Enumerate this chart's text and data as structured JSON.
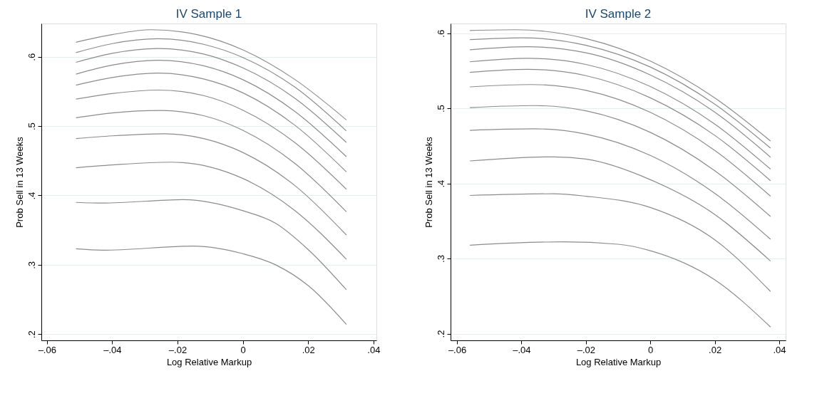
{
  "chart_data": [
    {
      "type": "line",
      "title": "IV Sample 1",
      "xlabel": "Log Relative Markup",
      "ylabel": "Prob Sell in 13 Weeks",
      "grid": "y",
      "legend": false,
      "marker": "none",
      "line_style": "solid",
      "xlim": [
        -0.0617,
        0.0409
      ],
      "ylim": [
        0.191,
        0.648
      ],
      "xticks": [
        {
          "value": -0.06,
          "label": "–.06"
        },
        {
          "value": -0.04,
          "label": "–.04"
        },
        {
          "value": -0.02,
          "label": "–.02"
        },
        {
          "value": 0,
          "label": "0"
        },
        {
          "value": 0.02,
          "label": ".02"
        },
        {
          "value": 0.04,
          "label": ".04"
        }
      ],
      "yticks": [
        {
          "value": 0.2,
          "label": ".2"
        },
        {
          "value": 0.3,
          "label": ".3"
        },
        {
          "value": 0.4,
          "label": ".4"
        },
        {
          "value": 0.5,
          "label": ".5"
        },
        {
          "value": 0.6,
          "label": ".6"
        }
      ],
      "series": [
        {
          "color": "#8c8c8c",
          "x": [
            -0.0511,
            -0.04,
            -0.028,
            -0.014,
            0,
            0.016,
            0.0317
          ],
          "values": [
            0.621,
            0.632,
            0.639,
            0.632,
            0.61,
            0.567,
            0.509
          ]
        },
        {
          "color": "#8c8c8c",
          "x": [
            -0.0511,
            -0.04,
            -0.026,
            -0.012,
            0,
            0.016,
            0.0317
          ],
          "values": [
            0.606,
            0.619,
            0.626,
            0.618,
            0.599,
            0.556,
            0.493
          ]
        },
        {
          "color": "#8c8c8c",
          "x": [
            -0.0511,
            -0.04,
            -0.026,
            -0.012,
            0,
            0.016,
            0.0317
          ],
          "values": [
            0.592,
            0.605,
            0.612,
            0.604,
            0.584,
            0.54,
            0.4765
          ]
        },
        {
          "color": "#8c8c8c",
          "x": [
            -0.0511,
            -0.04,
            -0.026,
            -0.012,
            0,
            0.016,
            0.0317
          ],
          "values": [
            0.575,
            0.588,
            0.595,
            0.587,
            0.567,
            0.521,
            0.456
          ]
        },
        {
          "color": "#8c8c8c",
          "x": [
            -0.0511,
            -0.04,
            -0.026,
            -0.012,
            0,
            0.016,
            0.0317
          ],
          "values": [
            0.559,
            0.57,
            0.5765,
            0.568,
            0.548,
            0.501,
            0.434
          ]
        },
        {
          "color": "#8c8c8c",
          "x": [
            -0.0511,
            -0.04,
            -0.026,
            -0.012,
            0,
            0.016,
            0.0317
          ],
          "values": [
            0.539,
            0.547,
            0.552,
            0.544,
            0.523,
            0.476,
            0.409
          ]
        },
        {
          "color": "#8c8c8c",
          "x": [
            -0.0511,
            -0.04,
            -0.025,
            -0.012,
            0,
            0.016,
            0.0317
          ],
          "values": [
            0.512,
            0.519,
            0.5225,
            0.515,
            0.494,
            0.446,
            0.3765
          ]
        },
        {
          "color": "#8c8c8c",
          "x": [
            -0.0511,
            -0.04,
            -0.024,
            -0.012,
            0,
            0.016,
            0.0317
          ],
          "values": [
            0.482,
            0.486,
            0.489,
            0.482,
            0.462,
            0.414,
            0.343
          ]
        },
        {
          "color": "#8c8c8c",
          "x": [
            -0.0511,
            -0.04,
            -0.022,
            -0.01,
            0,
            0.016,
            0.0317
          ],
          "values": [
            0.44,
            0.444,
            0.448,
            0.441,
            0.4245,
            0.378,
            0.308
          ]
        },
        {
          "color": "#8c8c8c",
          "x": [
            -0.0511,
            -0.043,
            -0.018,
            0,
            0.01,
            0.02,
            0.0317
          ],
          "values": [
            0.39,
            0.389,
            0.394,
            0.378,
            0.36,
            0.322,
            0.264
          ]
        },
        {
          "color": "#8c8c8c",
          "x": [
            -0.0511,
            -0.043,
            -0.015,
            0,
            0.01,
            0.02,
            0.0317
          ],
          "values": [
            0.323,
            0.321,
            0.327,
            0.316,
            0.3,
            0.27,
            0.214
          ]
        }
      ]
    },
    {
      "type": "line",
      "title": "IV Sample 2",
      "xlabel": "Log Relative Markup",
      "ylabel": "Prob Sell in 13 Weeks",
      "grid": "y",
      "legend": false,
      "marker": "none",
      "line_style": "solid",
      "xlim": [
        -0.062,
        0.042
      ],
      "ylim": [
        0.191,
        0.613
      ],
      "xticks": [
        {
          "value": -0.06,
          "label": "–.06"
        },
        {
          "value": -0.04,
          "label": "–.04"
        },
        {
          "value": -0.02,
          "label": "–.02"
        },
        {
          "value": 0,
          "label": "0"
        },
        {
          "value": 0.02,
          "label": ".02"
        },
        {
          "value": 0.04,
          "label": ".04"
        }
      ],
      "yticks": [
        {
          "value": 0.2,
          "label": ".2"
        },
        {
          "value": 0.3,
          "label": ".3"
        },
        {
          "value": 0.4,
          "label": ".4"
        },
        {
          "value": 0.5,
          "label": ".5"
        },
        {
          "value": 0.6,
          "label": ".6"
        }
      ],
      "series": [
        {
          "color": "#8c8c8c",
          "x": [
            -0.056,
            -0.042,
            -0.02,
            0,
            0.02,
            0.0373
          ],
          "values": [
            0.6037,
            0.6047,
            0.593,
            0.563,
            0.514,
            0.4566
          ]
        },
        {
          "color": "#8c8c8c",
          "x": [
            -0.056,
            -0.04,
            -0.02,
            0,
            0.02,
            0.0373
          ],
          "values": [
            0.5916,
            0.594,
            0.584,
            0.555,
            0.5055,
            0.447
          ]
        },
        {
          "color": "#8c8c8c",
          "x": [
            -0.056,
            -0.038,
            -0.02,
            0,
            0.02,
            0.0373
          ],
          "values": [
            0.578,
            0.582,
            0.574,
            0.5445,
            0.495,
            0.435
          ]
        },
        {
          "color": "#8c8c8c",
          "x": [
            -0.056,
            -0.038,
            -0.02,
            0,
            0.02,
            0.0373
          ],
          "values": [
            0.562,
            0.5667,
            0.5585,
            0.529,
            0.479,
            0.419
          ]
        },
        {
          "color": "#8c8c8c",
          "x": [
            -0.056,
            -0.038,
            -0.02,
            0,
            0.02,
            0.0373
          ],
          "values": [
            0.548,
            0.552,
            0.5435,
            0.514,
            0.464,
            0.4037
          ]
        },
        {
          "color": "#8c8c8c",
          "x": [
            -0.056,
            -0.037,
            -0.02,
            0,
            0.02,
            0.0373
          ],
          "values": [
            0.5286,
            0.5317,
            0.524,
            0.4947,
            0.444,
            0.383
          ]
        },
        {
          "color": "#8c8c8c",
          "x": [
            -0.056,
            -0.036,
            -0.02,
            0,
            0.02,
            0.0373
          ],
          "values": [
            0.501,
            0.5037,
            0.4967,
            0.468,
            0.417,
            0.356
          ]
        },
        {
          "color": "#8c8c8c",
          "x": [
            -0.056,
            -0.036,
            -0.02,
            0,
            0.02,
            0.0373
          ],
          "values": [
            0.4707,
            0.4727,
            0.4657,
            0.4373,
            0.3868,
            0.3256
          ]
        },
        {
          "color": "#8c8c8c",
          "x": [
            -0.056,
            -0.03,
            -0.02,
            0,
            0.02,
            0.0373
          ],
          "values": [
            0.43,
            0.4354,
            0.4324,
            0.405,
            0.3587,
            0.2966
          ]
        },
        {
          "color": "#8c8c8c",
          "x": [
            -0.056,
            -0.03,
            -0.02,
            0,
            0.02,
            0.0373
          ],
          "values": [
            0.384,
            0.3862,
            0.383,
            0.368,
            0.325,
            0.2562
          ]
        },
        {
          "color": "#8c8c8c",
          "x": [
            -0.056,
            -0.027,
            -0.01,
            0,
            0.02,
            0.0373
          ],
          "values": [
            0.3178,
            0.3222,
            0.319,
            0.3104,
            0.2717,
            0.2088
          ]
        }
      ]
    }
  ]
}
